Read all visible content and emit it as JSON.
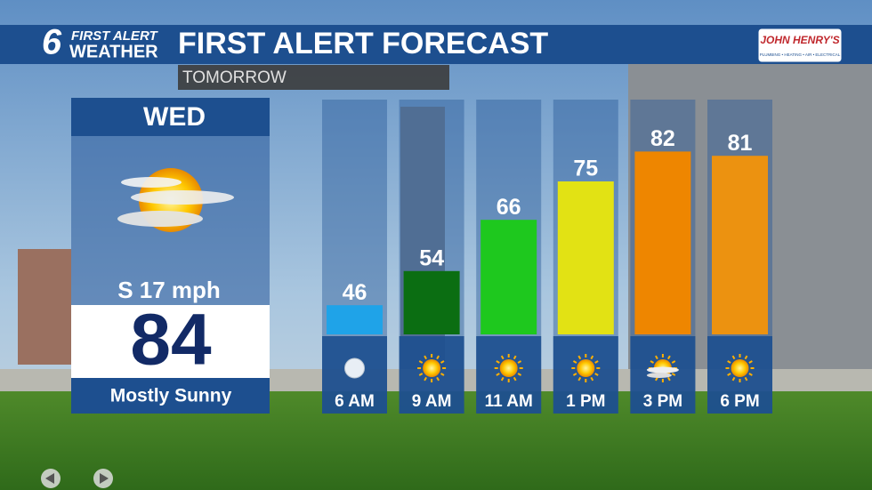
{
  "header": {
    "logo_number": "6",
    "logo_top": "FIRST ALERT",
    "logo_bottom": "WEATHER",
    "title": "FIRST ALERT FORECAST",
    "subtitle": "TOMORROW",
    "sponsor": "JOHN HENRY'S",
    "sponsor_tagline": "PLUMBING • HEATING • AIR • ELECTRICAL"
  },
  "today": {
    "day": "WED",
    "wind": "S 17 mph",
    "high": 84,
    "condition": "Mostly Sunny"
  },
  "chart_data": {
    "type": "bar",
    "categories": [
      "6 AM",
      "9 AM",
      "11 AM",
      "1 PM",
      "3 PM",
      "6 PM"
    ],
    "values": [
      46,
      54,
      66,
      75,
      82,
      81
    ],
    "colors": [
      "#1fa3e8",
      "#0b6e12",
      "#1ec81e",
      "#e2e214",
      "#ee8600",
      "#ec9210"
    ]
  }
}
